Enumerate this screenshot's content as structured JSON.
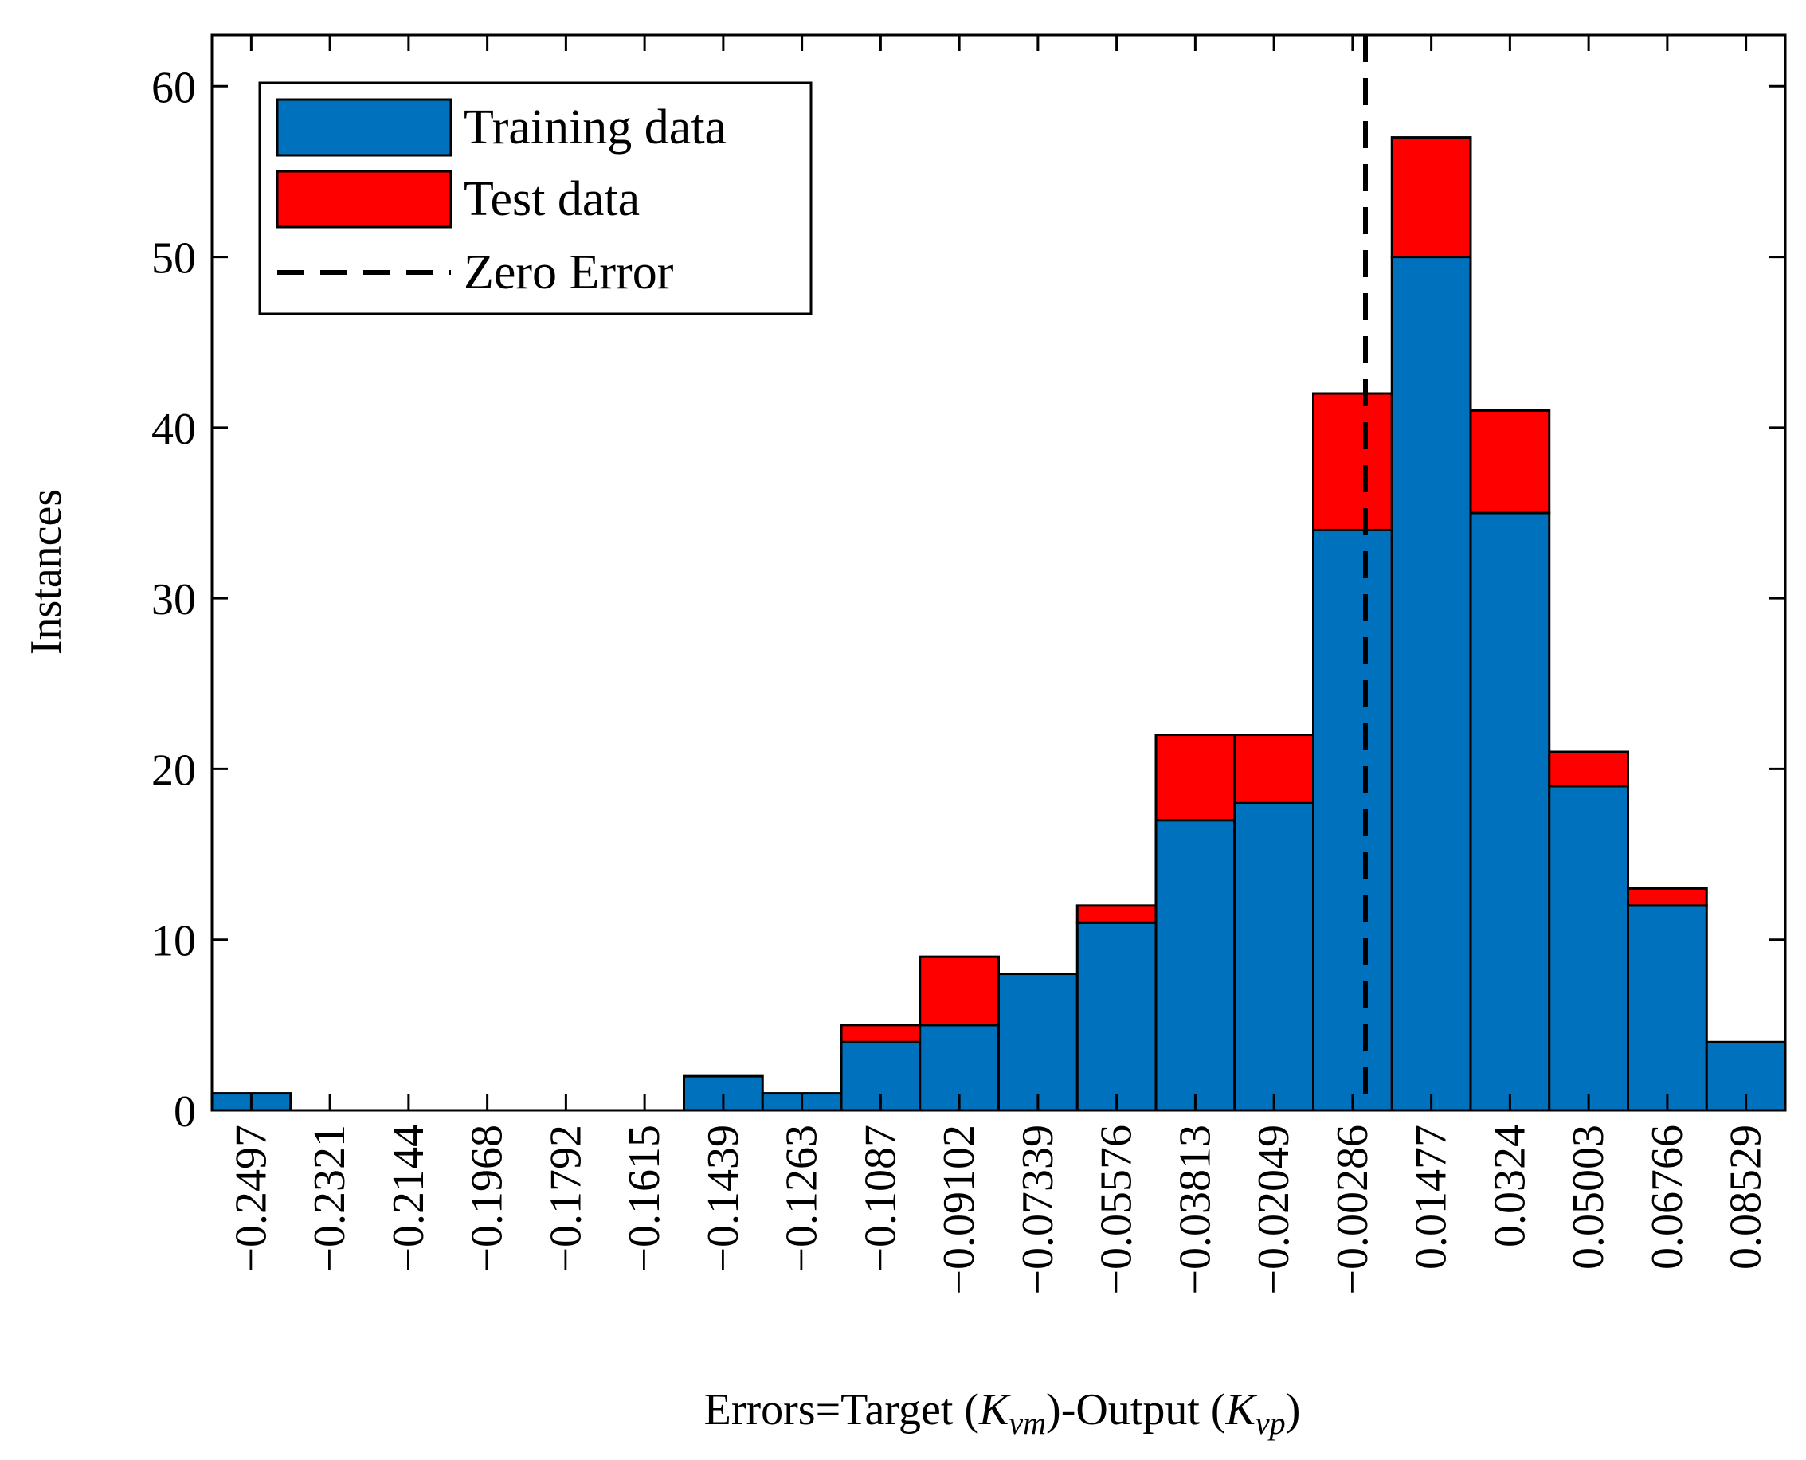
{
  "chart_data": {
    "type": "bar",
    "stacked": true,
    "title": "",
    "xlabel": {
      "prefix": "Errors=Target  (",
      "k1": "K",
      "sub1": "vm",
      "middle": ")-Output (",
      "k2": "K",
      "sub2": "vp",
      "suffix": ")"
    },
    "ylabel": "Instances",
    "ylim": [
      0,
      63
    ],
    "yticks": [
      0,
      10,
      20,
      30,
      40,
      50,
      60
    ],
    "categories": [
      "−0.2497",
      "−0.2321",
      "−0.2144",
      "−0.1968",
      "−0.1792",
      "−0.1615",
      "−0.1439",
      "−0.1263",
      "−0.1087",
      "−0.09102",
      "−0.07339",
      "−0.05576",
      "−0.03813",
      "−0.02049",
      "−0.00286",
      "0.01477",
      "0.0324",
      "0.05003",
      "0.06766",
      "0.08529"
    ],
    "series": [
      {
        "name": "Training data",
        "color": "#0072BD",
        "values": [
          1,
          0,
          0,
          0,
          0,
          0,
          2,
          1,
          4,
          5,
          8,
          11,
          17,
          18,
          34,
          50,
          35,
          19,
          12,
          4
        ]
      },
      {
        "name": "Test data",
        "color": "#FF0000",
        "values": [
          0,
          0,
          0,
          0,
          0,
          0,
          0,
          0,
          1,
          4,
          0,
          1,
          5,
          4,
          8,
          7,
          6,
          2,
          1,
          0
        ]
      }
    ],
    "zero_error": {
      "name": "Zero Error",
      "x": 0
    },
    "legend_position": "top-left",
    "grid": false
  }
}
